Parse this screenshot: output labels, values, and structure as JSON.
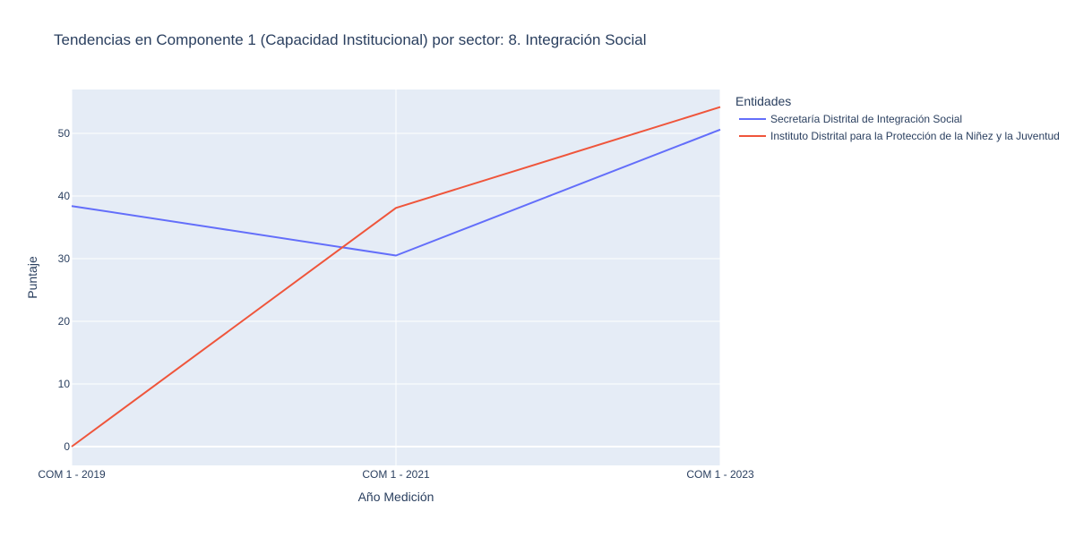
{
  "chart_data": {
    "type": "line",
    "title": "Tendencias en Componente 1 (Capacidad Institucional) por sector: 8. Integración Social",
    "xlabel": "Año Medición",
    "ylabel": "Puntaje",
    "categories": [
      "COM 1 - 2019",
      "COM 1 - 2021",
      "COM 1 - 2023"
    ],
    "ylim": [
      -3,
      57
    ],
    "yticks": [
      0,
      10,
      20,
      30,
      40,
      50
    ],
    "grid": true,
    "legend": {
      "title": "Entidades",
      "placement": "right"
    },
    "series": [
      {
        "name": "Secretaría Distrital de Integración Social",
        "color": "#636efa",
        "values": [
          38.4,
          30.5,
          50.6
        ]
      },
      {
        "name": "Instituto Distrital para la Protección de la Niñez y la Juventud",
        "color": "#ef553b",
        "values": [
          0,
          38.1,
          54.2
        ]
      }
    ]
  }
}
